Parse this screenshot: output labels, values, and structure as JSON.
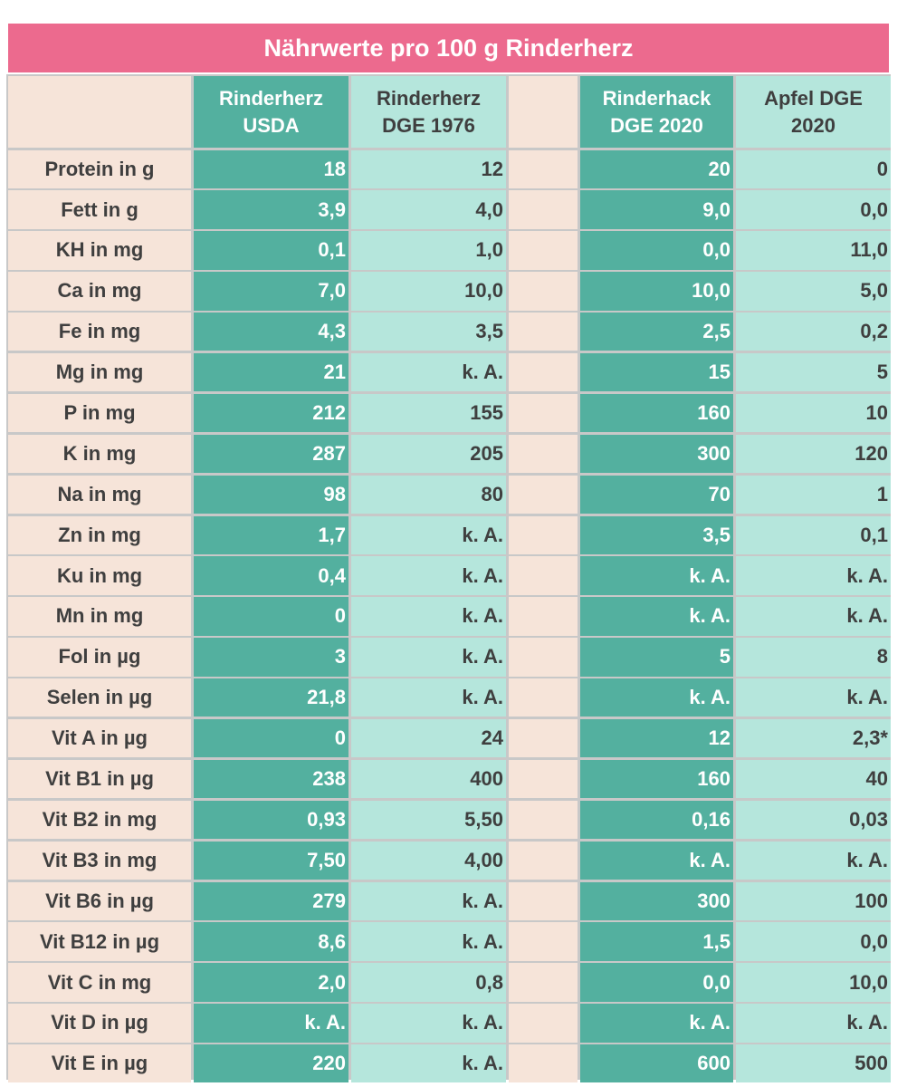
{
  "title": "Nährwerte pro 100 g Rinderherz",
  "chart_data": {
    "type": "table",
    "columns": [
      "Rinderherz\nUSDA",
      "Rinderherz\nDGE 1976",
      "Rinderhack\nDGE 2020",
      "Apfel DGE\n2020"
    ],
    "column_styles": [
      "dark",
      "light",
      "dark",
      "light"
    ],
    "colors": {
      "title_bg": "#ec6a8e",
      "label_bg": "#f6e4d9",
      "dark_green": "#53b09f",
      "light_green": "#b5e6dc",
      "grid_line": "#c8c8c8"
    },
    "rows": [
      {
        "label": "Protein in g",
        "values": [
          "18",
          "12",
          "20",
          "0"
        ]
      },
      {
        "label": "Fett in g",
        "values": [
          "3,9",
          "4,0",
          "9,0",
          "0,0"
        ]
      },
      {
        "label": "KH in mg",
        "values": [
          "0,1",
          "1,0",
          "0,0",
          "11,0"
        ]
      },
      {
        "label": "Ca in mg",
        "values": [
          "7,0",
          "10,0",
          "10,0",
          "5,0"
        ]
      },
      {
        "label": "Fe in mg",
        "values": [
          "4,3",
          "3,5",
          "2,5",
          "0,2"
        ]
      },
      {
        "label": "Mg in mg",
        "values": [
          "21",
          "k. A.",
          "15",
          "5"
        ]
      },
      {
        "label": "P in mg",
        "values": [
          "212",
          "155",
          "160",
          "10"
        ]
      },
      {
        "label": "K in mg",
        "values": [
          "287",
          "205",
          "300",
          "120"
        ]
      },
      {
        "label": "Na in mg",
        "values": [
          "98",
          "80",
          "70",
          "1"
        ]
      },
      {
        "label": "Zn in mg",
        "values": [
          "1,7",
          "k. A.",
          "3,5",
          "0,1"
        ]
      },
      {
        "label": "Ku in mg",
        "values": [
          "0,4",
          "k. A.",
          "k. A.",
          "k. A."
        ]
      },
      {
        "label": "Mn in mg",
        "values": [
          "0",
          "k. A.",
          "k. A.",
          "k. A."
        ]
      },
      {
        "label": "Fol in µg",
        "values": [
          "3",
          "k. A.",
          "5",
          "8"
        ]
      },
      {
        "label": "Selen in µg",
        "values": [
          "21,8",
          "k. A.",
          "k. A.",
          "k. A."
        ]
      },
      {
        "label": "Vit A in µg",
        "values": [
          "0",
          "24",
          "12",
          "2,3*"
        ]
      },
      {
        "label": "Vit B1 in µg",
        "values": [
          "238",
          "400",
          "160",
          "40"
        ]
      },
      {
        "label": "Vit B2 in mg",
        "values": [
          "0,93",
          "5,50",
          "0,16",
          "0,03"
        ]
      },
      {
        "label": "Vit B3 in mg",
        "values": [
          "7,50",
          "4,00",
          "k. A.",
          "k. A."
        ]
      },
      {
        "label": "Vit B6 in µg",
        "values": [
          "279",
          "k. A.",
          "300",
          "100"
        ]
      },
      {
        "label": "Vit B12 in µg",
        "values": [
          "8,6",
          "k. A.",
          "1,5",
          "0,0"
        ]
      },
      {
        "label": "Vit C in mg",
        "values": [
          "2,0",
          "0,8",
          "0,0",
          "10,0"
        ]
      },
      {
        "label": "Vit D in µg",
        "values": [
          "k. A.",
          "k. A.",
          "k. A.",
          "k. A."
        ]
      },
      {
        "label": "Vit E in µg",
        "values": [
          "220",
          "k. A.",
          "600",
          "500"
        ]
      }
    ]
  }
}
